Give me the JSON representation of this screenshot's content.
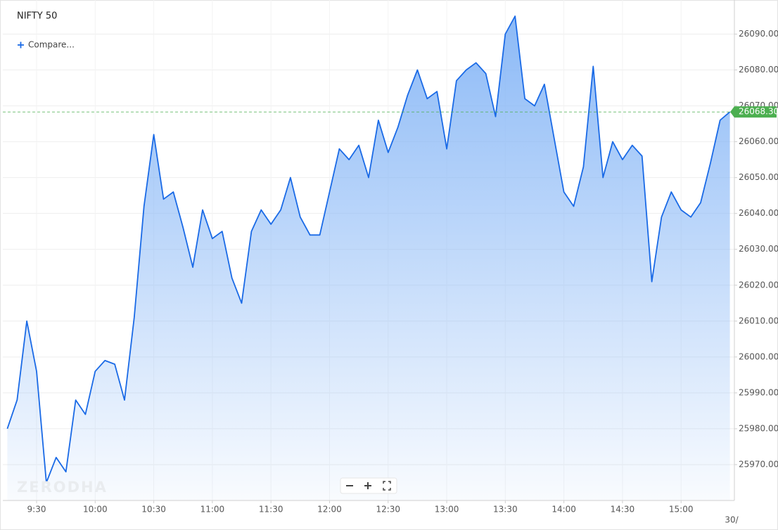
{
  "chart_data": {
    "type": "area",
    "title": "NIFTY 50",
    "compare": "Compare...",
    "watermark": "ZERODHA",
    "date_label": "30/",
    "x": [
      555,
      560,
      565,
      570,
      575,
      580,
      585,
      590,
      595,
      600,
      605,
      610,
      615,
      620,
      625,
      630,
      635,
      640,
      645,
      650,
      655,
      660,
      665,
      670,
      675,
      680,
      685,
      690,
      695,
      700,
      705,
      710,
      715,
      720,
      725,
      730,
      735,
      740,
      745,
      750,
      755,
      760,
      765,
      770,
      775,
      780,
      785,
      790,
      795,
      800,
      805,
      810,
      815,
      820,
      825,
      830,
      835,
      840,
      845,
      850,
      855,
      860,
      865,
      870,
      875,
      880,
      885,
      890,
      895,
      900,
      905,
      910,
      915,
      920,
      925
    ],
    "series": [
      {
        "name": "NIFTY 50",
        "color": "#1a6ae6",
        "values": [
          25980,
          25988,
          26010,
          25996,
          25965,
          25972,
          25968,
          25988,
          25984,
          25996,
          25999,
          25998,
          25988,
          26011,
          26042,
          26062,
          26044,
          26046,
          26036,
          26025,
          26041,
          26033,
          26035,
          26022,
          26015,
          26035,
          26041,
          26037,
          26041,
          26050,
          26039,
          26034,
          26034,
          26046,
          26058,
          26055,
          26059,
          26050,
          26066,
          26057,
          26064,
          26073,
          26080,
          26072,
          26074,
          26058,
          26077,
          26080,
          26082,
          26079,
          26067,
          26090,
          26095,
          26072,
          26070,
          26076,
          26061,
          26046,
          26042,
          26053,
          26081,
          26050,
          26060,
          26055,
          26059,
          26056,
          26021,
          26039,
          26046,
          26041,
          26039,
          26043,
          26054,
          26066,
          26068.3
        ]
      }
    ],
    "price_line": {
      "value": 26068.3,
      "label": "26068.30"
    },
    "xlim": [
      552.7,
      927.3
    ],
    "xticks": [
      {
        "value": 570,
        "label": "9:30"
      },
      {
        "value": 600,
        "label": "10:00"
      },
      {
        "value": 630,
        "label": "10:30"
      },
      {
        "value": 660,
        "label": "11:00"
      },
      {
        "value": 690,
        "label": "11:30"
      },
      {
        "value": 720,
        "label": "12:00"
      },
      {
        "value": 750,
        "label": "12:30"
      },
      {
        "value": 780,
        "label": "13:00"
      },
      {
        "value": 810,
        "label": "13:30"
      },
      {
        "value": 840,
        "label": "14:00"
      },
      {
        "value": 870,
        "label": "14:30"
      },
      {
        "value": 900,
        "label": "15:00"
      }
    ],
    "ylim": [
      25960,
      26099.5
    ],
    "yticks": [
      {
        "value": 25970,
        "label": "25970.00"
      },
      {
        "value": 25980,
        "label": "25980.00"
      },
      {
        "value": 25990,
        "label": "25990.00"
      },
      {
        "value": 26000,
        "label": "26000.00"
      },
      {
        "value": 26010,
        "label": "26010.00"
      },
      {
        "value": 26020,
        "label": "26020.00"
      },
      {
        "value": 26030,
        "label": "26030.00"
      },
      {
        "value": 26040,
        "label": "26040.00"
      },
      {
        "value": 26050,
        "label": "26050.00"
      },
      {
        "value": 26060,
        "label": "26060.00"
      },
      {
        "value": 26070,
        "label": "26070.00"
      },
      {
        "value": 26080,
        "label": "26080.00"
      },
      {
        "value": 26090,
        "label": "26090.00"
      }
    ],
    "grid": true
  }
}
